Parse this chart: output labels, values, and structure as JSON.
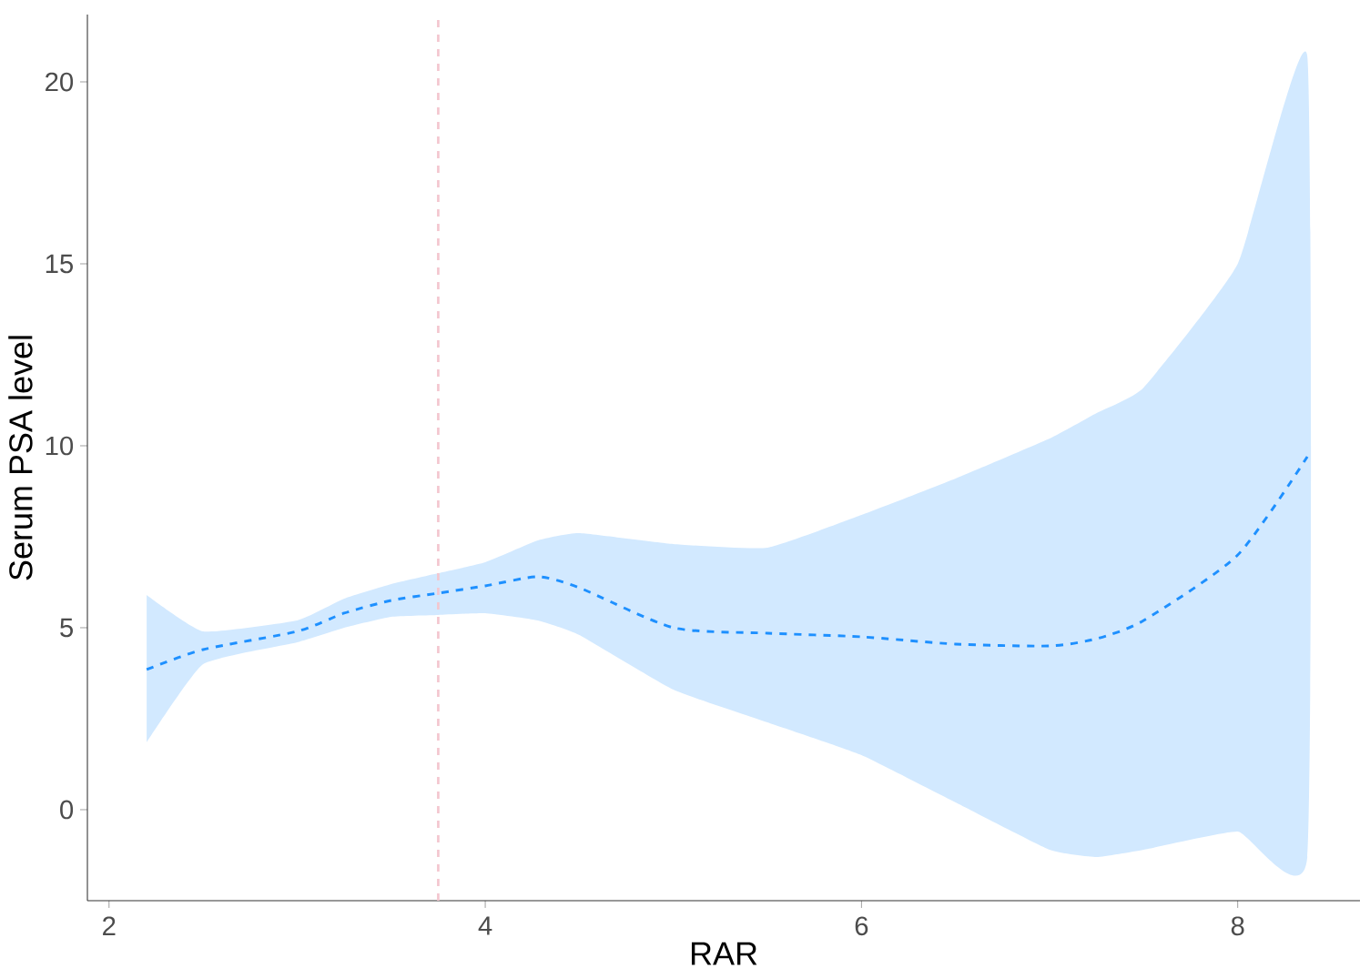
{
  "chart_data": {
    "type": "line",
    "xlabel": "RAR",
    "ylabel": "Serum PSA level",
    "xlim": [
      1.885,
      8.65
    ],
    "ylim": [
      -2.5,
      21.85
    ],
    "xticks": [
      2,
      4,
      6,
      8
    ],
    "yticks": [
      0,
      5,
      10,
      15,
      20
    ],
    "grid": false,
    "marker": "none",
    "line_style": "dashed",
    "series": [
      {
        "color": "#1e90ff",
        "x": [
          2.2,
          2.5,
          3.0,
          3.25,
          3.5,
          3.75,
          4.0,
          4.28,
          4.5,
          5.0,
          5.5,
          6.0,
          6.5,
          7.0,
          7.25,
          7.5,
          8.0,
          8.37
        ],
        "values": [
          3.85,
          4.4,
          4.9,
          5.4,
          5.75,
          5.95,
          6.15,
          6.4,
          6.1,
          5.0,
          4.85,
          4.75,
          4.55,
          4.5,
          4.7,
          5.2,
          7.0,
          9.7
        ],
        "lower": [
          1.85,
          4.0,
          4.6,
          5.0,
          5.3,
          5.35,
          5.4,
          5.2,
          4.8,
          3.3,
          2.4,
          1.5,
          0.2,
          -1.1,
          -1.3,
          -1.1,
          -0.6,
          -1.3
        ],
        "upper": [
          5.9,
          4.9,
          5.2,
          5.8,
          6.2,
          6.5,
          6.8,
          7.4,
          7.6,
          7.3,
          7.2,
          8.1,
          9.1,
          10.2,
          10.9,
          11.6,
          15.0,
          20.7
        ]
      }
    ],
    "ref_lines": [
      {
        "axis": "x",
        "value": 3.75,
        "color": "#f4c6cf",
        "line_style": "dashed"
      }
    ]
  }
}
